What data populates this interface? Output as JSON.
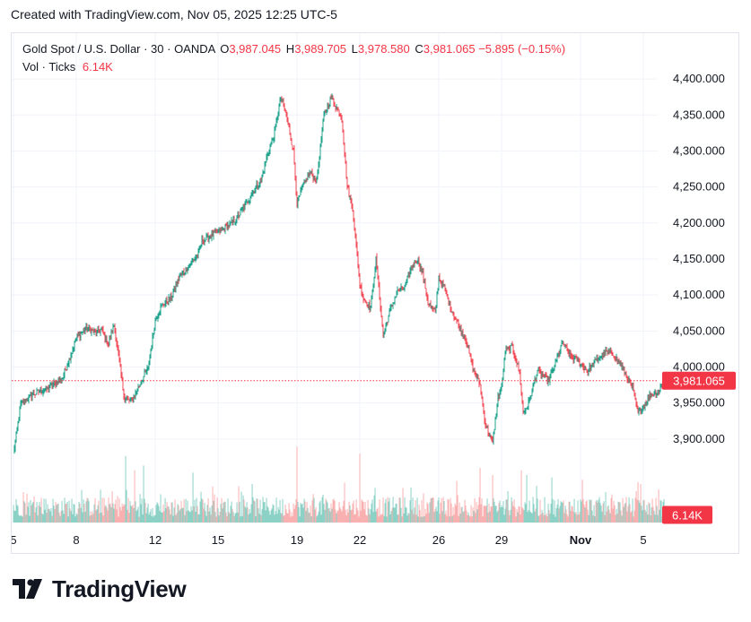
{
  "header": {
    "created_with": "Created with TradingView.com, Nov 05, 2025 12:25 UTC-5"
  },
  "legend": {
    "symbol": "Gold Spot / U.S. Dollar · 30 · OANDA",
    "o_label": "O",
    "o_value": "3,987.045",
    "h_label": "H",
    "h_value": "3,989.705",
    "l_label": "L",
    "l_value": "3,978.580",
    "c_label": "C",
    "c_value": "3,981.065",
    "change": "−5.895 (−0.15%)",
    "vol_label": "Vol · Ticks",
    "vol_value": "6.14K"
  },
  "price_tag": "3,981.065",
  "volume_tag": "6.14K",
  "brand": "TradingView",
  "colors": {
    "up": "#089981",
    "down": "#f23645",
    "vol_up": "#7fccc0",
    "vol_down": "#f7a9a7",
    "grid": "#f0f3fa",
    "tag_bg": "#f23645"
  },
  "chart_data": {
    "type": "candlestick",
    "symbol": "Gold Spot / U.S. Dollar",
    "interval": "30",
    "y_range": [
      3860,
      4420
    ],
    "y_ticks": [
      "4,400.000",
      "4,350.000",
      "4,300.000",
      "4,250.000",
      "4,200.000",
      "4,150.000",
      "4,100.000",
      "4,050.000",
      "4,000.000",
      "3,950.000",
      "3,900.000"
    ],
    "y_tick_values": [
      4400,
      4350,
      4300,
      4250,
      4200,
      4150,
      4100,
      4050,
      4000,
      3950,
      3900
    ],
    "x_ticks": [
      "5",
      "8",
      "12",
      "15",
      "19",
      "22",
      "26",
      "29",
      "Nov",
      "5"
    ],
    "x_tick_index": [
      0,
      70,
      158,
      228,
      316,
      386,
      474,
      544,
      632,
      702
    ],
    "last_price": 3981.065,
    "price_path_index": [
      0,
      8,
      22,
      38,
      55,
      70,
      82,
      92,
      98,
      106,
      112,
      116,
      120,
      124,
      132,
      138,
      143,
      150,
      158,
      165,
      175,
      185,
      195,
      205,
      210,
      218,
      228,
      238,
      248,
      260,
      270,
      276,
      282,
      290,
      298,
      304,
      312,
      316,
      322,
      330,
      338,
      346,
      354,
      360,
      366,
      372,
      378,
      386,
      390,
      398,
      404,
      412,
      420,
      428,
      436,
      444,
      450,
      456,
      462,
      470,
      474,
      480,
      488,
      496,
      504,
      512,
      520,
      526,
      534,
      540,
      544,
      548,
      556,
      564,
      568,
      574,
      584,
      596,
      604,
      612,
      620,
      628,
      632,
      640,
      650,
      660,
      668,
      676,
      684,
      690,
      696,
      702,
      710,
      720,
      725
    ],
    "price_path_values": [
      3880,
      3948,
      3962,
      3970,
      3985,
      4040,
      4055,
      4048,
      4052,
      4032,
      4058,
      4025,
      3988,
      3955,
      3952,
      3968,
      3982,
      3998,
      4065,
      4085,
      4095,
      4125,
      4140,
      4155,
      4175,
      4180,
      4188,
      4195,
      4205,
      4228,
      4250,
      4260,
      4290,
      4320,
      4375,
      4350,
      4300,
      4225,
      4250,
      4270,
      4260,
      4350,
      4375,
      4360,
      4345,
      4250,
      4220,
      4115,
      4095,
      4082,
      4150,
      4045,
      4080,
      4105,
      4110,
      4140,
      4150,
      4130,
      4090,
      4075,
      4125,
      4110,
      4080,
      4058,
      4040,
      3998,
      3975,
      3920,
      3895,
      3958,
      3972,
      4022,
      4028,
      3992,
      3935,
      3950,
      3995,
      3980,
      4005,
      4035,
      4015,
      4010,
      4005,
      3995,
      4010,
      4020,
      4018,
      4005,
      3985,
      3970,
      3935,
      3945,
      3962,
      3968,
      3983
    ]
  },
  "volume_data": {
    "max_ticks": 20000,
    "spike_index": [
      125,
      135,
      145,
      200,
      316,
      386,
      520,
      534,
      566,
      572,
      600,
      634,
      696,
      728
    ],
    "spike_values": [
      14000,
      11000,
      12000,
      10500,
      16000,
      14500,
      11500,
      10000,
      11000,
      10000,
      9500,
      9000,
      8500,
      6140
    ]
  }
}
